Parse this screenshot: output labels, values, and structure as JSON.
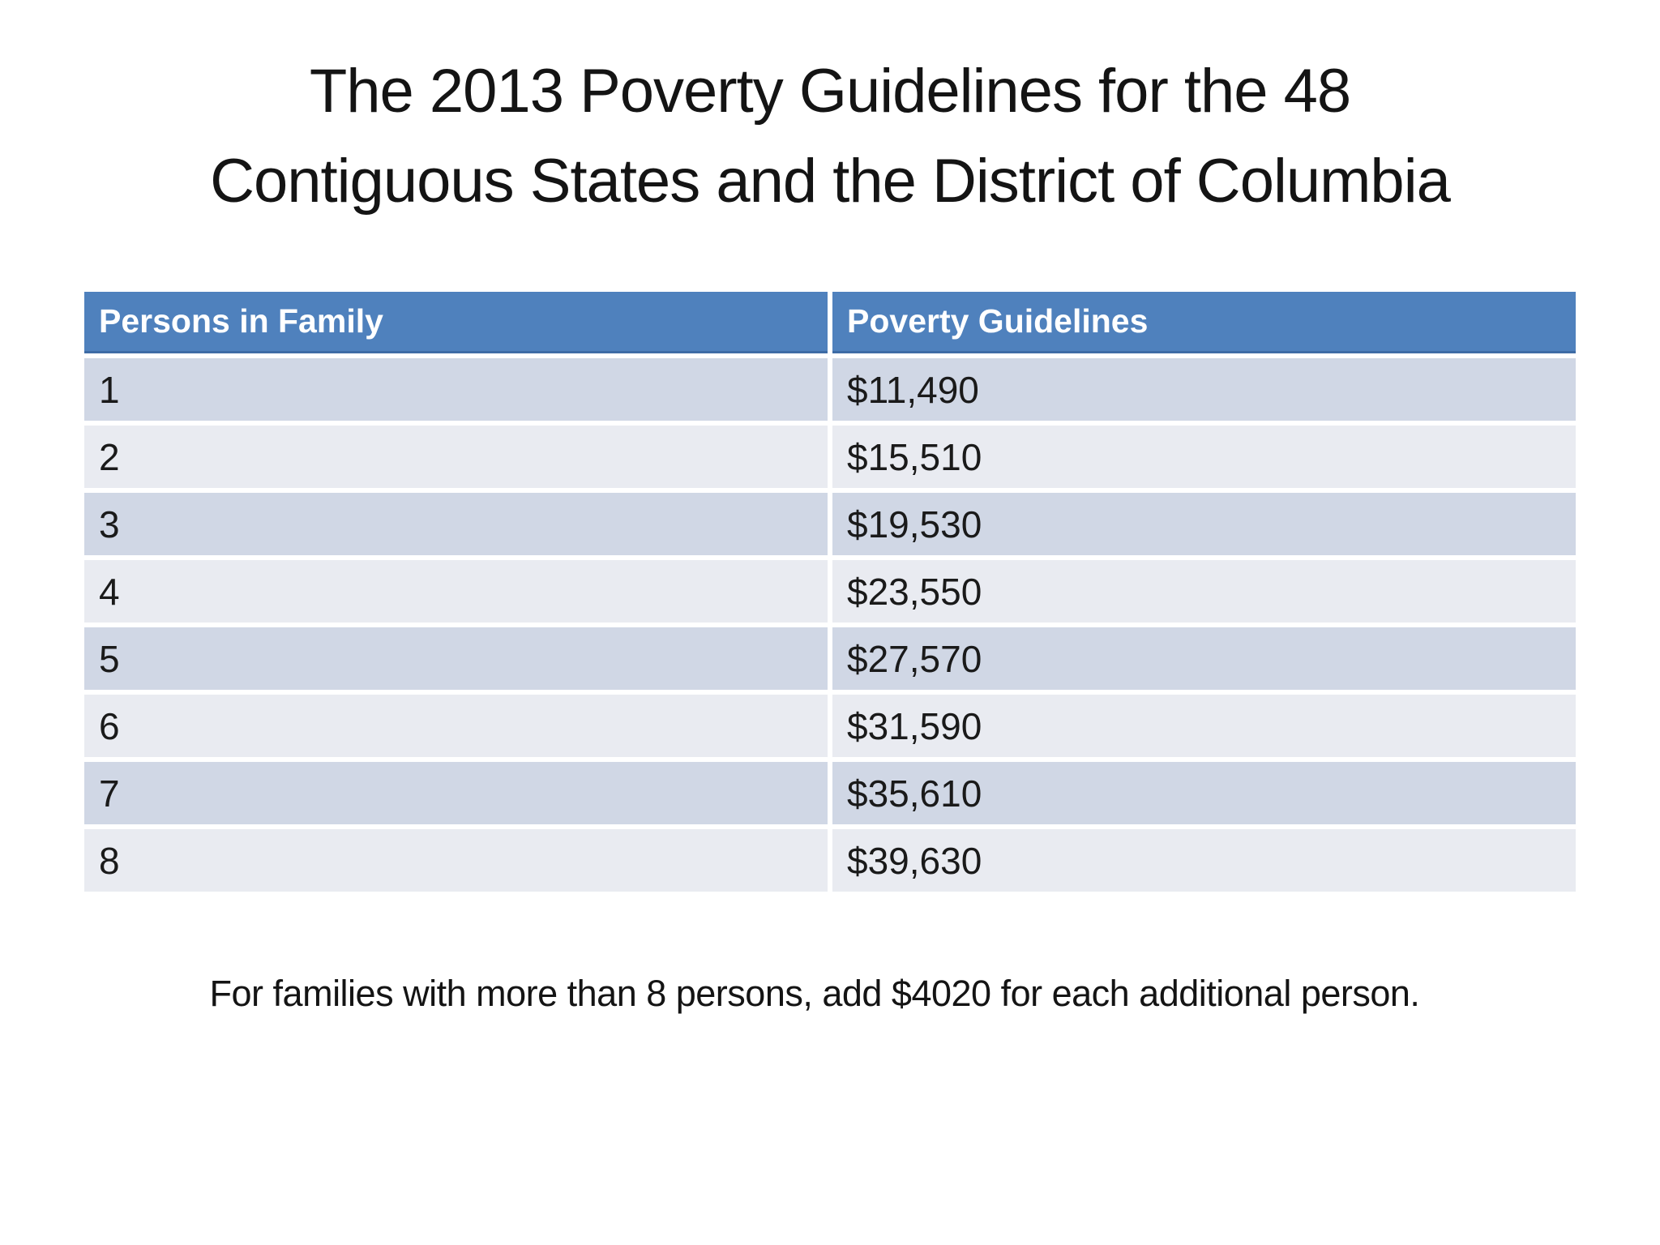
{
  "slide": {
    "title_line1": "The 2013 Poverty Guidelines for the 48",
    "title_line2": "Contiguous States and the District of Columbia",
    "footnote": "For families with more than 8 persons, add $4020 for each additional person."
  },
  "table": {
    "columns": [
      "Persons in Family",
      "Poverty Guidelines"
    ],
    "rows": [
      {
        "persons": "1",
        "guideline": "$11,490"
      },
      {
        "persons": "2",
        "guideline": "$15,510"
      },
      {
        "persons": "3",
        "guideline": "$19,530"
      },
      {
        "persons": "4",
        "guideline": "$23,550"
      },
      {
        "persons": "5",
        "guideline": "$27,570"
      },
      {
        "persons": "6",
        "guideline": "$31,590"
      },
      {
        "persons": "7",
        "guideline": "$35,610"
      },
      {
        "persons": "8",
        "guideline": "$39,630"
      }
    ]
  },
  "colors": {
    "header_bg": "#4F81BD",
    "header_edge": "#3E6CA5",
    "header_text": "#FFFFFF",
    "row_dark": "#D0D7E5",
    "row_light": "#E9EBF1",
    "body_text": "#1A1A1A"
  }
}
